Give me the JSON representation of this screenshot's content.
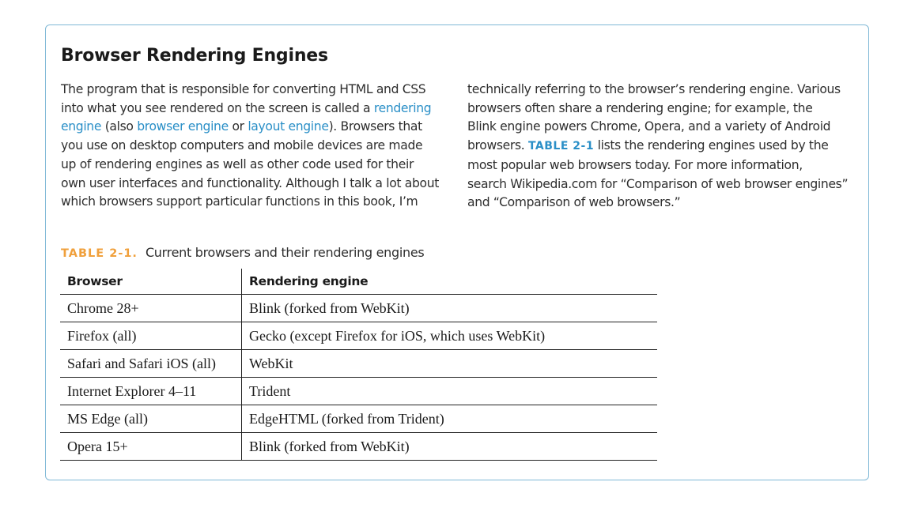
{
  "sidebar": {
    "title": "Browser Rendering Engines",
    "left_lines": [
      [
        {
          "text": "The program that is responsible for converting HTML and CSS"
        }
      ],
      [
        {
          "text": "into what you see rendered on the screen is called a "
        },
        {
          "text": "rendering",
          "term": true
        }
      ],
      [
        {
          "text": "engine",
          "term": true
        },
        {
          "text": " (also "
        },
        {
          "text": "browser engine",
          "term": true
        },
        {
          "text": " or "
        },
        {
          "text": "layout engine",
          "term": true
        },
        {
          "text": "). Browsers that"
        }
      ],
      [
        {
          "text": "you use on desktop computers and mobile devices are made"
        }
      ],
      [
        {
          "text": "up of rendering engines as well as other code used for their"
        }
      ],
      [
        {
          "text": "own user interfaces and functionality. Although I talk a lot about"
        }
      ],
      [
        {
          "text": "which browsers support particular functions in this book, I’m"
        }
      ]
    ],
    "right_lines": [
      [
        {
          "text": "technically referring to the browser’s rendering engine. Various"
        }
      ],
      [
        {
          "text": "browsers often share a rendering engine; for example, the"
        }
      ],
      [
        {
          "text": "Blink engine powers Chrome, Opera, and a variety of Android"
        }
      ],
      [
        {
          "text": "browsers. "
        },
        {
          "text": "TABLE 2-1",
          "xref": true
        },
        {
          "text": " lists the rendering engines used by the"
        }
      ],
      [
        {
          "text": "most popular web browsers today. For more information,"
        }
      ],
      [
        {
          "text": "search Wikipedia.com for “Comparison of web browser engines”"
        }
      ],
      [
        {
          "text": "and “Comparison of web browsers.”"
        }
      ]
    ]
  },
  "table": {
    "label": "TABLE 2-1.",
    "caption": "Current browsers and their rendering engines",
    "headers": [
      "Browser",
      "Rendering engine"
    ],
    "rows": [
      [
        "Chrome 28+",
        "Blink (forked from WebKit)"
      ],
      [
        "Firefox (all)",
        "Gecko (except Firefox for iOS, which uses WebKit)"
      ],
      [
        "Safari and Safari iOS (all)",
        "WebKit"
      ],
      [
        "Internet Explorer 4–11",
        "Trident"
      ],
      [
        "MS Edge (all)",
        "EdgeHTML (forked from Trident)"
      ],
      [
        "Opera 15+",
        "Blink (forked from WebKit)"
      ]
    ]
  },
  "colors": {
    "border": "#7fb8d6",
    "term": "#2a8fc7",
    "table_label": "#f0a03c",
    "text": "#2e2e2e"
  }
}
